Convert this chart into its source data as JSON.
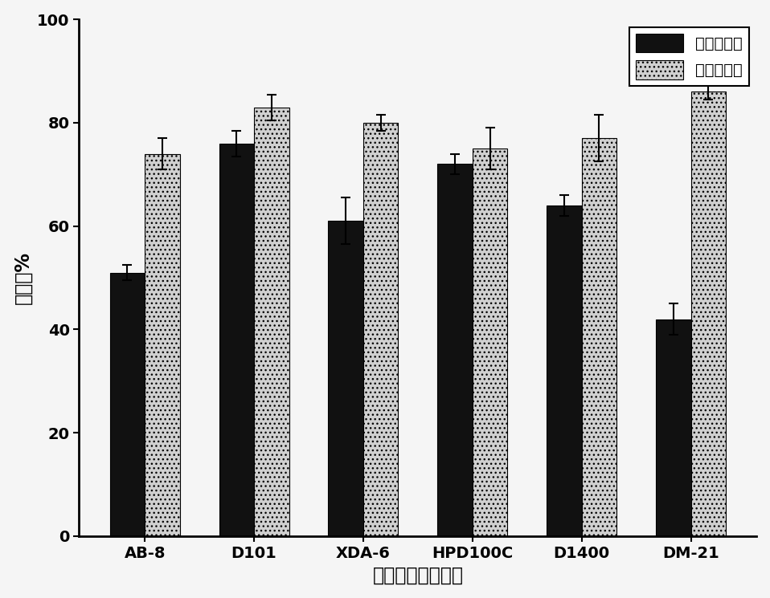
{
  "categories": [
    "AB-8",
    "D101",
    "XDA-6",
    "HPD100C",
    "D1400",
    "DM-21"
  ],
  "absorption_values": [
    51,
    76,
    61,
    72,
    64,
    42
  ],
  "desorption_values": [
    74,
    83,
    80,
    75,
    77,
    86
  ],
  "absorption_errors": [
    1.5,
    2.5,
    4.5,
    2.0,
    2.0,
    3.0
  ],
  "desorption_errors": [
    3.0,
    2.5,
    1.5,
    4.0,
    4.5,
    1.5
  ],
  "absorption_color": "#111111",
  "desorption_color": "#d0d0d0",
  "ylabel": "百分率%",
  "xlabel": "大孔吸附树脂类型",
  "legend_absorption": "静态吸附率",
  "legend_desorption": "静态解吸率",
  "ylim": [
    0,
    100
  ],
  "yticks": [
    0,
    20,
    40,
    60,
    80,
    100
  ],
  "bar_width": 0.32,
  "label_fontsize": 17,
  "tick_fontsize": 14,
  "legend_fontsize": 14,
  "background_color": "#f5f5f5",
  "desorption_hatch": "..."
}
